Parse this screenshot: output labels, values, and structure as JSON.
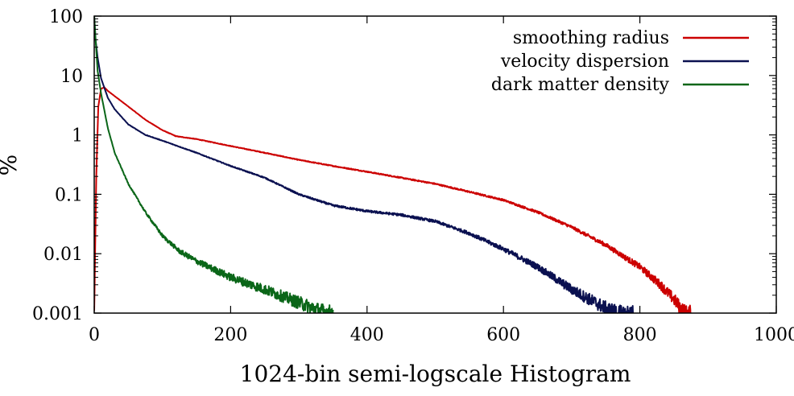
{
  "chart_data": {
    "type": "line",
    "title": "",
    "xlabel": "1024-bin semi-logscale Histogram",
    "ylabel": "%",
    "xlim": [
      0,
      1000
    ],
    "ylim": [
      0.001,
      100
    ],
    "yscale": "log",
    "grid": false,
    "legend_position": "top-right",
    "x_ticks": [
      "0",
      "200",
      "400",
      "600",
      "800",
      "1000"
    ],
    "y_ticks": [
      "0.001",
      "0.01",
      "0.1",
      "1",
      "10",
      "100"
    ],
    "series": [
      {
        "name": "smoothing radius",
        "color": "#cc0000",
        "x": [
          0,
          3,
          6,
          10,
          15,
          20,
          30,
          50,
          75,
          100,
          120,
          150,
          200,
          250,
          300,
          350,
          400,
          450,
          500,
          550,
          600,
          650,
          700,
          750,
          800,
          830,
          850,
          860,
          868,
          875
        ],
        "y": [
          0.001,
          0.2,
          3,
          6,
          6.3,
          5.5,
          4.5,
          3,
          1.8,
          1.2,
          0.95,
          0.85,
          0.65,
          0.5,
          0.38,
          0.3,
          0.24,
          0.19,
          0.15,
          0.11,
          0.08,
          0.05,
          0.028,
          0.014,
          0.006,
          0.003,
          0.0017,
          0.0012,
          0.001,
          0.001
        ]
      },
      {
        "name": "velocity dispersion",
        "color": "#0a1050",
        "x": [
          0,
          2,
          5,
          10,
          20,
          30,
          50,
          75,
          100,
          150,
          200,
          250,
          300,
          350,
          400,
          450,
          500,
          550,
          600,
          650,
          700,
          750,
          770,
          790
        ],
        "y": [
          100,
          40,
          20,
          9,
          4.2,
          2.7,
          1.5,
          1.0,
          0.8,
          0.5,
          0.3,
          0.19,
          0.1,
          0.065,
          0.052,
          0.045,
          0.035,
          0.022,
          0.012,
          0.006,
          0.0025,
          0.0012,
          0.001,
          0.001
        ]
      },
      {
        "name": "dark matter density",
        "color": "#0a6618",
        "x": [
          0,
          2,
          5,
          10,
          20,
          30,
          50,
          75,
          100,
          125,
          150,
          200,
          250,
          300,
          330,
          350
        ],
        "y": [
          100,
          40,
          12,
          5,
          1.3,
          0.5,
          0.15,
          0.05,
          0.02,
          0.011,
          0.0075,
          0.004,
          0.0025,
          0.0015,
          0.0011,
          0.001
        ]
      }
    ]
  }
}
